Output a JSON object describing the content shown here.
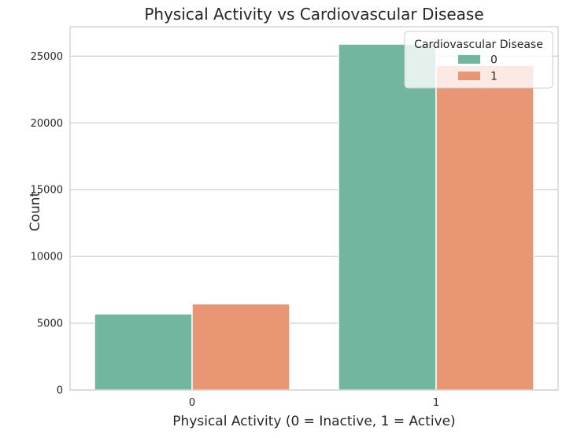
{
  "chart_data": {
    "type": "bar",
    "title": "Physical Activity vs Cardiovascular Disease",
    "xlabel": "Physical Activity (0 = Inactive, 1 = Active)",
    "ylabel": "Count",
    "categories": [
      "0",
      "1"
    ],
    "series": [
      {
        "name": "0",
        "values": [
          5700,
          25900
        ],
        "color": "#72b6a0"
      },
      {
        "name": "1",
        "values": [
          6450,
          24300
        ],
        "color": "#e99674"
      }
    ],
    "ylim": [
      0,
      27200
    ],
    "yticks": [
      0,
      5000,
      10000,
      15000,
      20000,
      25000
    ],
    "grid": "horizontal",
    "legend": {
      "title": "Cardiovascular Disease",
      "placement": "top-right"
    }
  }
}
